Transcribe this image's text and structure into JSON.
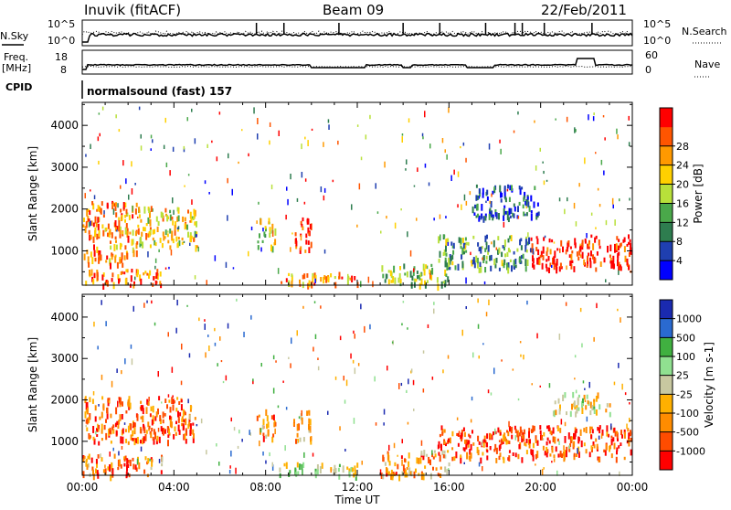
{
  "header": {
    "station": "Inuvik (fitACF)",
    "beam": "Beam 09",
    "date": "22/Feb/2011"
  },
  "noise_panel": {
    "left_label": "N.Sky",
    "right_label": "N.Search",
    "left_ticks": [
      "10^5",
      "10^0"
    ],
    "right_ticks": [
      "10^5",
      "10^0"
    ]
  },
  "freq_panel": {
    "left_label_line1": "Freq.",
    "left_label_line2": "[MHz]",
    "right_label": "Nave",
    "left_ticks": [
      "18",
      "8"
    ],
    "right_ticks": [
      "60",
      "0"
    ]
  },
  "cpid": {
    "label": "CPID",
    "mode": "normalsound (fast) 157"
  },
  "colors": {
    "power": [
      "#0000ff",
      "#1f3fb0",
      "#2e7d4f",
      "#4aa84a",
      "#b8e03a",
      "#ffd000",
      "#ff9900",
      "#ff5500",
      "#ff0000"
    ],
    "velocity": [
      "#ff0000",
      "#ff4c00",
      "#ff8c00",
      "#ffb000",
      "#c8c8a0",
      "#90e090",
      "#40b040",
      "#2a6ad0",
      "#1a2ab0"
    ]
  },
  "chart_data": [
    {
      "type": "heatmap",
      "quantity": "Power",
      "ylabel": "Slant Range [km]",
      "yticks": [
        1000,
        2000,
        3000,
        4000
      ],
      "ylim": [
        180,
        4550
      ],
      "xlim": [
        0,
        24
      ],
      "colorbar": {
        "label": "Power [dB]",
        "ticks": [
          "4",
          "8",
          "12",
          "16",
          "20",
          "24",
          "28"
        ],
        "range": [
          0,
          32
        ]
      },
      "echo_regions": [
        {
          "t": [
            0.0,
            2.4
          ],
          "r": [
            700,
            2200
          ],
          "level": 0.75
        },
        {
          "t": [
            2.4,
            5.0
          ],
          "r": [
            1100,
            2100
          ],
          "level": 0.6
        },
        {
          "t": [
            0.0,
            3.5
          ],
          "r": [
            200,
            600
          ],
          "level": 0.8
        },
        {
          "t": [
            7.6,
            8.4
          ],
          "r": [
            1100,
            1800
          ],
          "level": 0.55
        },
        {
          "t": [
            9.2,
            10.0
          ],
          "r": [
            1000,
            1800
          ],
          "level": 0.9
        },
        {
          "t": [
            8.5,
            12.0
          ],
          "r": [
            200,
            500
          ],
          "level": 0.7
        },
        {
          "t": [
            13.0,
            16.0
          ],
          "r": [
            200,
            700
          ],
          "level": 0.45
        },
        {
          "t": [
            15.5,
            19.5
          ],
          "r": [
            600,
            1400
          ],
          "level": 0.35
        },
        {
          "t": [
            19.5,
            24.0
          ],
          "r": [
            600,
            1400
          ],
          "level": 0.92
        },
        {
          "t": [
            17.0,
            20.0
          ],
          "r": [
            1800,
            2600
          ],
          "level": 0.2
        }
      ]
    },
    {
      "type": "heatmap",
      "quantity": "Velocity",
      "xlabel": "Time UT",
      "ylabel": "Slant Range [km]",
      "yticks": [
        1000,
        2000,
        3000,
        4000
      ],
      "ylim": [
        180,
        4550
      ],
      "xlim": [
        0,
        24
      ],
      "xticks": [
        "00:00",
        "04:00",
        "08:00",
        "12:00",
        "16:00",
        "20:00",
        "00:00"
      ],
      "colorbar": {
        "label": "Velocity [m s-1]",
        "ticks": [
          "-1000",
          "-500",
          "-100",
          "-25",
          "25",
          "100",
          "500",
          "1000"
        ],
        "range": [
          -1000,
          1000
        ]
      },
      "echo_regions": [
        {
          "t": [
            0.0,
            5.0
          ],
          "r": [
            1000,
            2100
          ],
          "level": 0.2
        },
        {
          "t": [
            0.0,
            3.5
          ],
          "r": [
            200,
            700
          ],
          "level": 0.25
        },
        {
          "t": [
            7.6,
            8.4
          ],
          "r": [
            1100,
            1800
          ],
          "level": 0.3
        },
        {
          "t": [
            9.2,
            10.0
          ],
          "r": [
            1000,
            1800
          ],
          "level": 0.35
        },
        {
          "t": [
            8.5,
            12.0
          ],
          "r": [
            200,
            500
          ],
          "level": 0.55
        },
        {
          "t": [
            13.0,
            16.0
          ],
          "r": [
            200,
            800
          ],
          "level": 0.3
        },
        {
          "t": [
            15.5,
            24.0
          ],
          "r": [
            600,
            1400
          ],
          "level": 0.15
        },
        {
          "t": [
            20.5,
            23.0
          ],
          "r": [
            1700,
            2200
          ],
          "level": 0.45
        }
      ]
    }
  ]
}
